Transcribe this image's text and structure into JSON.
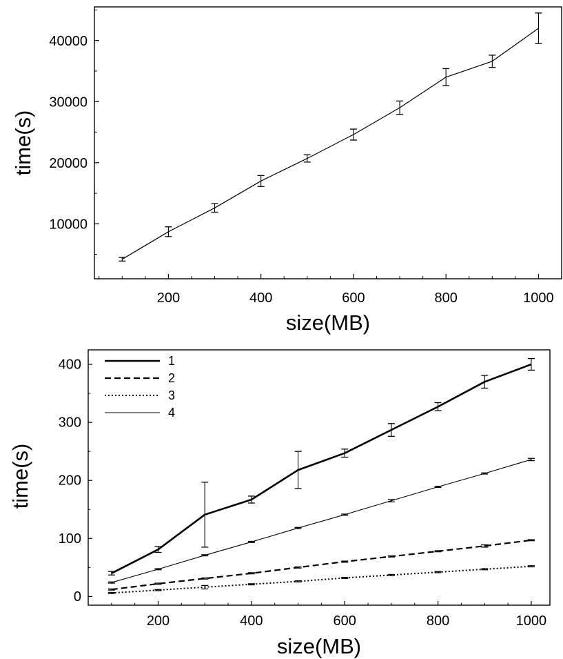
{
  "chart_data": [
    {
      "type": "line",
      "title": "",
      "xlabel": "size(MB)",
      "ylabel": "time(s)",
      "xlim": [
        40,
        1050
      ],
      "ylim": [
        1000,
        45500
      ],
      "xticks": [
        200,
        400,
        600,
        800,
        1000
      ],
      "yticks": [
        10000,
        20000,
        30000,
        40000
      ],
      "xticklabels": [
        "200",
        "400",
        "600",
        "800",
        "1000"
      ],
      "yticklabels": [
        "10000",
        "20000",
        "30000",
        "40000"
      ],
      "grid": false,
      "legend": "none",
      "x": [
        100,
        200,
        300,
        400,
        500,
        600,
        700,
        800,
        900,
        1000
      ],
      "series": [
        {
          "style": "thin-solid",
          "values": [
            4200,
            8700,
            12600,
            17000,
            20700,
            24600,
            29000,
            34000,
            36600,
            42000
          ],
          "error": [
            300,
            800,
            700,
            900,
            600,
            900,
            1100,
            1400,
            1000,
            2500
          ]
        }
      ]
    },
    {
      "type": "line",
      "title": "",
      "xlabel": "size(MB)",
      "ylabel": "time(s)",
      "xlim": [
        50,
        1040
      ],
      "ylim": [
        -15,
        425
      ],
      "xticks": [
        200,
        400,
        600,
        800,
        1000
      ],
      "yticks": [
        0,
        100,
        200,
        300,
        400
      ],
      "xticklabels": [
        "200",
        "400",
        "600",
        "800",
        "1000"
      ],
      "yticklabels": [
        "0",
        "100",
        "200",
        "300",
        "400"
      ],
      "grid": false,
      "legend": "top-left",
      "x": [
        100,
        200,
        300,
        400,
        500,
        600,
        700,
        800,
        900,
        1000
      ],
      "series": [
        {
          "name": "1",
          "style": "thick-solid",
          "values": [
            40,
            81,
            141,
            167,
            218,
            247,
            287,
            327,
            370,
            400
          ],
          "error": [
            3,
            5,
            56,
            6,
            32,
            7,
            11,
            7,
            11,
            10
          ]
        },
        {
          "name": "2",
          "style": "dashed",
          "values": [
            12,
            22,
            31,
            40,
            50,
            60,
            69,
            78,
            87,
            97
          ],
          "error": [
            1,
            1,
            1,
            1,
            1,
            1,
            1,
            1,
            2,
            1
          ]
        },
        {
          "name": "3",
          "style": "dotted",
          "values": [
            6,
            11,
            16,
            21,
            26,
            32,
            37,
            42,
            47,
            52
          ],
          "error": [
            1,
            1,
            3,
            1,
            1,
            1,
            1,
            1,
            1,
            1
          ]
        },
        {
          "name": "4",
          "style": "thin-solid",
          "values": [
            24,
            47,
            71,
            94,
            118,
            141,
            165,
            189,
            212,
            236
          ],
          "error": [
            1,
            1,
            1,
            1,
            1,
            1,
            2,
            1,
            1,
            2
          ]
        }
      ]
    }
  ]
}
